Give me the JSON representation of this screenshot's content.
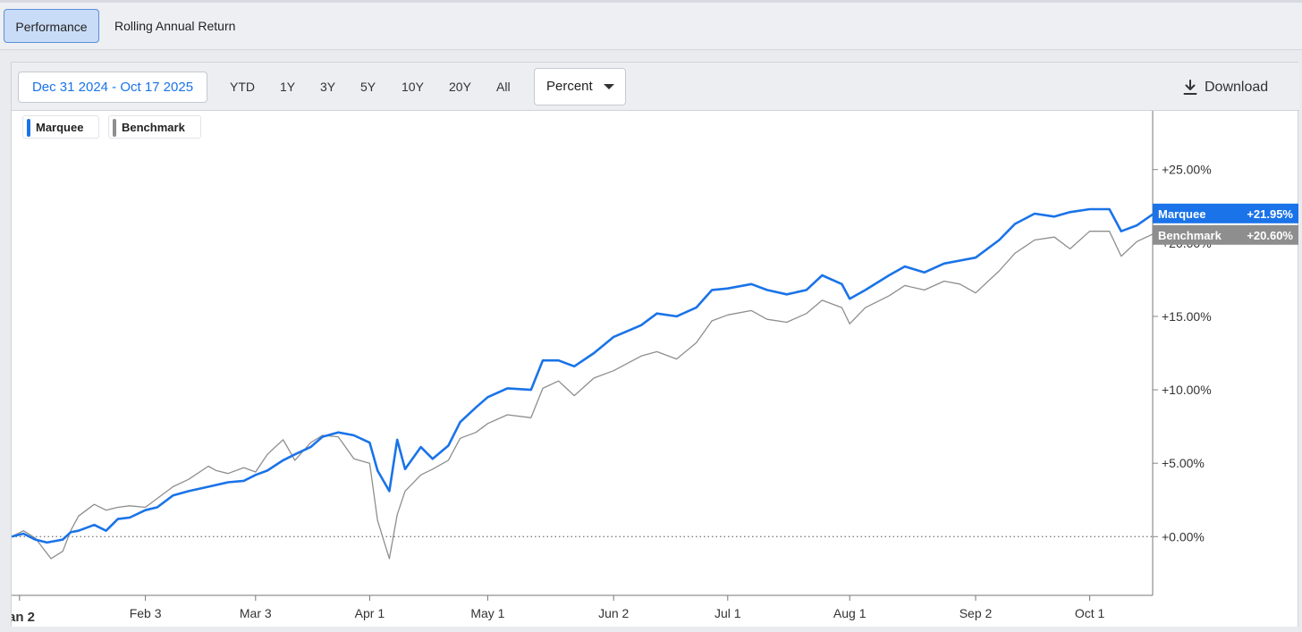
{
  "tabs": [
    {
      "label": "Performance",
      "active": true
    },
    {
      "label": "Rolling Annual Return",
      "active": false
    }
  ],
  "toolbar": {
    "date_range": "Dec 31 2024 - Oct 17 2025",
    "ranges": [
      "YTD",
      "1Y",
      "3Y",
      "5Y",
      "10Y",
      "20Y",
      "All"
    ],
    "unit_selected": "Percent",
    "download_label": "Download"
  },
  "colors": {
    "primary": "#1a73e8",
    "benchmark": "#8e8e8e"
  },
  "chart_data": {
    "type": "line",
    "x_range": [
      "2024-12-31",
      "2025-10-17"
    ],
    "x_ticks": [
      {
        "date": "2025-01-02",
        "label": "an 2"
      },
      {
        "date": "2025-02-03",
        "label": "Feb 3"
      },
      {
        "date": "2025-03-03",
        "label": "Mar 3"
      },
      {
        "date": "2025-04-01",
        "label": "Apr 1"
      },
      {
        "date": "2025-05-01",
        "label": "May 1"
      },
      {
        "date": "2025-06-02",
        "label": "Jun 2"
      },
      {
        "date": "2025-07-01",
        "label": "Jul 1"
      },
      {
        "date": "2025-08-01",
        "label": "Aug 1"
      },
      {
        "date": "2025-09-02",
        "label": "Sep 2"
      },
      {
        "date": "2025-10-01",
        "label": "Oct 1"
      }
    ],
    "ylim": [
      -4,
      29
    ],
    "y_ticks": [
      {
        "value": 0,
        "label": "+0.00%"
      },
      {
        "value": 5,
        "label": "+5.00%"
      },
      {
        "value": 10,
        "label": "+10.00%"
      },
      {
        "value": 15,
        "label": "+15.00%"
      },
      {
        "value": 20,
        "label": "+20.00%"
      },
      {
        "value": 25,
        "label": "+25.00%"
      }
    ],
    "zero_line": "dotted",
    "legend_position": "top-left",
    "series": [
      {
        "name": "Marquee",
        "last_label": "+21.95%",
        "points": [
          [
            "2024-12-31",
            0.0
          ],
          [
            "2025-01-03",
            0.2
          ],
          [
            "2025-01-06",
            -0.2
          ],
          [
            "2025-01-09",
            -0.4
          ],
          [
            "2025-01-13",
            -0.2
          ],
          [
            "2025-01-15",
            0.3
          ],
          [
            "2025-01-17",
            0.4
          ],
          [
            "2025-01-21",
            0.8
          ],
          [
            "2025-01-24",
            0.4
          ],
          [
            "2025-01-27",
            1.2
          ],
          [
            "2025-01-30",
            1.3
          ],
          [
            "2025-02-03",
            1.8
          ],
          [
            "2025-02-06",
            2.0
          ],
          [
            "2025-02-10",
            2.8
          ],
          [
            "2025-02-14",
            3.1
          ],
          [
            "2025-02-19",
            3.4
          ],
          [
            "2025-02-24",
            3.7
          ],
          [
            "2025-02-28",
            3.8
          ],
          [
            "2025-03-03",
            4.2
          ],
          [
            "2025-03-06",
            4.5
          ],
          [
            "2025-03-10",
            5.2
          ],
          [
            "2025-03-13",
            5.6
          ],
          [
            "2025-03-17",
            6.1
          ],
          [
            "2025-03-20",
            6.8
          ],
          [
            "2025-03-24",
            7.1
          ],
          [
            "2025-03-28",
            6.9
          ],
          [
            "2025-04-01",
            6.4
          ],
          [
            "2025-04-03",
            4.5
          ],
          [
            "2025-04-06",
            3.1
          ],
          [
            "2025-04-08",
            6.6
          ],
          [
            "2025-04-10",
            4.6
          ],
          [
            "2025-04-14",
            6.1
          ],
          [
            "2025-04-17",
            5.3
          ],
          [
            "2025-04-21",
            6.2
          ],
          [
            "2025-04-24",
            7.8
          ],
          [
            "2025-04-28",
            8.8
          ],
          [
            "2025-05-01",
            9.5
          ],
          [
            "2025-05-06",
            10.1
          ],
          [
            "2025-05-12",
            10.0
          ],
          [
            "2025-05-15",
            12.0
          ],
          [
            "2025-05-19",
            12.0
          ],
          [
            "2025-05-23",
            11.6
          ],
          [
            "2025-05-28",
            12.5
          ],
          [
            "2025-06-02",
            13.6
          ],
          [
            "2025-06-09",
            14.4
          ],
          [
            "2025-06-13",
            15.2
          ],
          [
            "2025-06-18",
            15.0
          ],
          [
            "2025-06-23",
            15.6
          ],
          [
            "2025-06-27",
            16.8
          ],
          [
            "2025-07-01",
            16.9
          ],
          [
            "2025-07-07",
            17.2
          ],
          [
            "2025-07-11",
            16.8
          ],
          [
            "2025-07-16",
            16.5
          ],
          [
            "2025-07-21",
            16.8
          ],
          [
            "2025-07-25",
            17.8
          ],
          [
            "2025-07-30",
            17.2
          ],
          [
            "2025-08-01",
            16.2
          ],
          [
            "2025-08-05",
            16.8
          ],
          [
            "2025-08-11",
            17.8
          ],
          [
            "2025-08-15",
            18.4
          ],
          [
            "2025-08-20",
            18.0
          ],
          [
            "2025-08-25",
            18.6
          ],
          [
            "2025-08-29",
            18.8
          ],
          [
            "2025-09-02",
            19.0
          ],
          [
            "2025-09-08",
            20.2
          ],
          [
            "2025-09-12",
            21.3
          ],
          [
            "2025-09-17",
            22.0
          ],
          [
            "2025-09-22",
            21.8
          ],
          [
            "2025-09-26",
            22.1
          ],
          [
            "2025-10-01",
            22.3
          ],
          [
            "2025-10-06",
            22.3
          ],
          [
            "2025-10-09",
            20.8
          ],
          [
            "2025-10-13",
            21.2
          ],
          [
            "2025-10-17",
            21.95
          ]
        ]
      },
      {
        "name": "Benchmark",
        "last_label": "+20.60%",
        "points": [
          [
            "2024-12-31",
            0.0
          ],
          [
            "2025-01-03",
            0.4
          ],
          [
            "2025-01-06",
            -0.1
          ],
          [
            "2025-01-10",
            -1.5
          ],
          [
            "2025-01-13",
            -1.0
          ],
          [
            "2025-01-15",
            0.4
          ],
          [
            "2025-01-17",
            1.4
          ],
          [
            "2025-01-21",
            2.2
          ],
          [
            "2025-01-24",
            1.8
          ],
          [
            "2025-01-27",
            2.0
          ],
          [
            "2025-01-30",
            2.1
          ],
          [
            "2025-02-03",
            2.0
          ],
          [
            "2025-02-06",
            2.6
          ],
          [
            "2025-02-10",
            3.4
          ],
          [
            "2025-02-14",
            3.9
          ],
          [
            "2025-02-19",
            4.8
          ],
          [
            "2025-02-21",
            4.5
          ],
          [
            "2025-02-24",
            4.3
          ],
          [
            "2025-02-28",
            4.7
          ],
          [
            "2025-03-03",
            4.4
          ],
          [
            "2025-03-06",
            5.6
          ],
          [
            "2025-03-10",
            6.6
          ],
          [
            "2025-03-13",
            5.2
          ],
          [
            "2025-03-17",
            6.4
          ],
          [
            "2025-03-20",
            6.9
          ],
          [
            "2025-03-24",
            6.8
          ],
          [
            "2025-03-28",
            5.3
          ],
          [
            "2025-04-01",
            5.0
          ],
          [
            "2025-04-03",
            1.1
          ],
          [
            "2025-04-06",
            -1.5
          ],
          [
            "2025-04-08",
            1.5
          ],
          [
            "2025-04-10",
            3.1
          ],
          [
            "2025-04-14",
            4.2
          ],
          [
            "2025-04-17",
            4.6
          ],
          [
            "2025-04-21",
            5.2
          ],
          [
            "2025-04-24",
            6.7
          ],
          [
            "2025-04-28",
            7.1
          ],
          [
            "2025-05-01",
            7.7
          ],
          [
            "2025-05-06",
            8.3
          ],
          [
            "2025-05-12",
            8.1
          ],
          [
            "2025-05-15",
            10.1
          ],
          [
            "2025-05-19",
            10.6
          ],
          [
            "2025-05-23",
            9.6
          ],
          [
            "2025-05-28",
            10.8
          ],
          [
            "2025-06-02",
            11.3
          ],
          [
            "2025-06-09",
            12.3
          ],
          [
            "2025-06-13",
            12.6
          ],
          [
            "2025-06-18",
            12.1
          ],
          [
            "2025-06-23",
            13.2
          ],
          [
            "2025-06-27",
            14.7
          ],
          [
            "2025-07-01",
            15.1
          ],
          [
            "2025-07-07",
            15.4
          ],
          [
            "2025-07-11",
            14.8
          ],
          [
            "2025-07-16",
            14.6
          ],
          [
            "2025-07-21",
            15.2
          ],
          [
            "2025-07-25",
            16.1
          ],
          [
            "2025-07-30",
            15.6
          ],
          [
            "2025-08-01",
            14.5
          ],
          [
            "2025-08-05",
            15.6
          ],
          [
            "2025-08-11",
            16.4
          ],
          [
            "2025-08-15",
            17.1
          ],
          [
            "2025-08-20",
            16.8
          ],
          [
            "2025-08-25",
            17.4
          ],
          [
            "2025-08-29",
            17.2
          ],
          [
            "2025-09-02",
            16.6
          ],
          [
            "2025-09-08",
            18.1
          ],
          [
            "2025-09-12",
            19.3
          ],
          [
            "2025-09-17",
            20.2
          ],
          [
            "2025-09-22",
            20.4
          ],
          [
            "2025-09-26",
            19.6
          ],
          [
            "2025-10-01",
            20.8
          ],
          [
            "2025-10-06",
            20.8
          ],
          [
            "2025-10-09",
            19.1
          ],
          [
            "2025-10-13",
            20.1
          ],
          [
            "2025-10-17",
            20.6
          ]
        ]
      }
    ]
  }
}
